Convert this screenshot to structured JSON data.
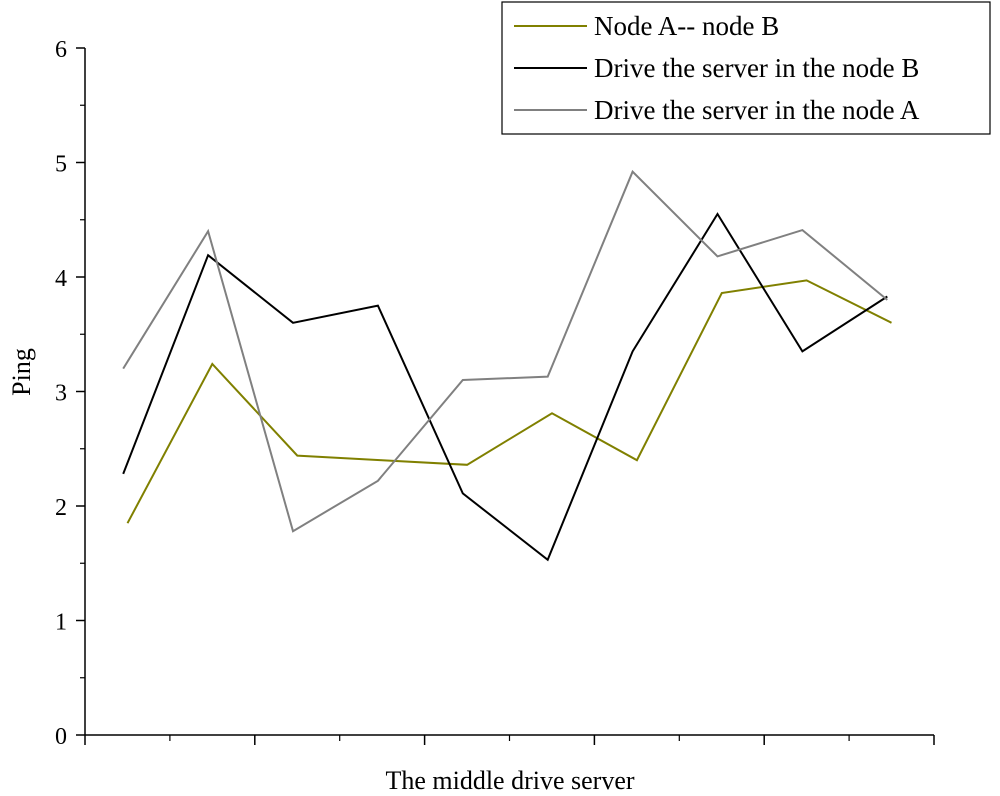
{
  "chart_data": {
    "type": "line",
    "title": "",
    "xlabel": "The middle drive server",
    "ylabel": "Ping",
    "ylim": [
      0,
      6
    ],
    "xlim": [
      0.5,
      10.5
    ],
    "y_ticks": [
      "0",
      "1",
      "2",
      "3",
      "4",
      "5",
      "6"
    ],
    "x_tick_labels_visible": false,
    "grid": false,
    "legend_position": "top-right",
    "x": [
      1,
      2,
      3,
      4,
      5,
      6,
      7,
      8,
      9,
      10
    ],
    "series": [
      {
        "name": "Node A-- node B",
        "color": "#808000",
        "x": [
          1,
          2,
          3,
          4,
          5,
          6,
          7,
          8,
          9,
          10
        ],
        "values": [
          1.85,
          3.24,
          2.44,
          2.4,
          2.36,
          2.81,
          2.4,
          3.86,
          3.97,
          3.6
        ]
      },
      {
        "name": "Drive the server in the node B",
        "color": "#000000",
        "x": [
          0.95,
          1.95,
          2.95,
          3.95,
          4.95,
          5.95,
          6.95,
          7.95,
          8.95,
          9.95
        ],
        "values": [
          2.28,
          4.19,
          3.6,
          3.75,
          2.11,
          1.53,
          3.35,
          4.55,
          3.35,
          3.83
        ]
      },
      {
        "name": "Drive the server in the node A",
        "color": "#808080",
        "x": [
          0.95,
          1.95,
          2.95,
          3.95,
          4.95,
          5.95,
          6.95,
          7.95,
          8.95,
          9.95
        ],
        "values": [
          3.2,
          4.4,
          1.78,
          2.22,
          3.1,
          3.13,
          4.92,
          4.18,
          4.41,
          3.8
        ]
      }
    ]
  }
}
